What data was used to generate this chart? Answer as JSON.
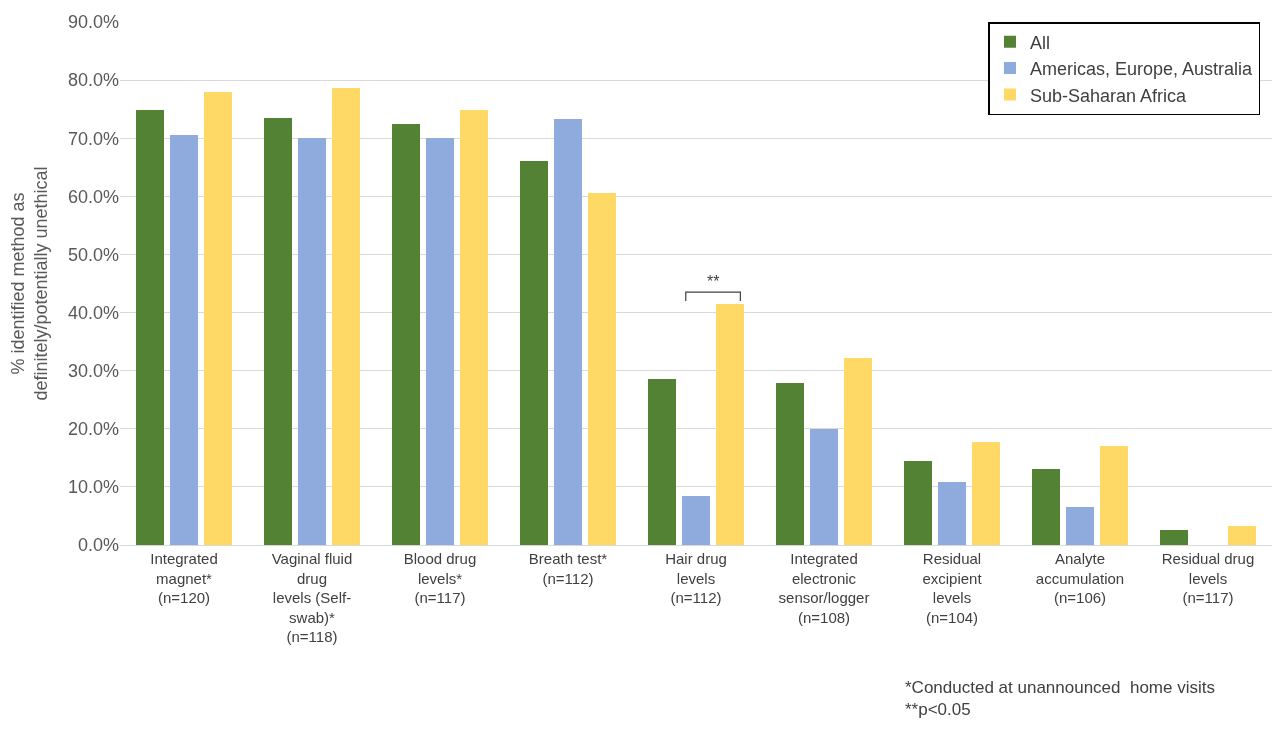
{
  "chart_data": {
    "type": "bar",
    "ylabel": "% identified method as\ndefinitely/potentially unethical",
    "categories": [
      "Integrated\nmagnet*\n(n=120)",
      "Vaginal fluid\ndrug\nlevels (Self-\nswab)*\n(n=118)",
      "Blood drug\nlevels*\n(n=117)",
      "Breath test*\n(n=112)",
      "Hair drug\nlevels\n(n=112)",
      "Integrated\nelectronic\nsensor/logger\n(n=108)",
      "Residual\nexcipient\nlevels\n(n=104)",
      "Analyte\naccumulation\n(n=106)",
      "Residual drug\nlevels\n(n=117)"
    ],
    "series": [
      {
        "name": "All",
        "color": "#548235",
        "values": [
          74.9,
          73.5,
          72.5,
          66.0,
          28.5,
          27.8,
          14.4,
          13.1,
          2.5
        ]
      },
      {
        "name": "Americas, Europe, Australia",
        "color": "#8faadc",
        "values": [
          70.5,
          70.0,
          70.0,
          73.3,
          8.5,
          20.0,
          10.9,
          6.5,
          0
        ]
      },
      {
        "name": "Sub-Saharan Africa",
        "color": "#ffd966",
        "values": [
          77.9,
          78.6,
          74.9,
          60.6,
          41.4,
          32.1,
          17.7,
          17.0,
          3.2
        ]
      }
    ],
    "ylim": [
      0,
      90
    ],
    "yticks": [
      {
        "value": 0,
        "label": "0.0%"
      },
      {
        "value": 10,
        "label": "10.0%"
      },
      {
        "value": 20,
        "label": "20.0%"
      },
      {
        "value": 30,
        "label": "30.0%"
      },
      {
        "value": 40,
        "label": "40.0%"
      },
      {
        "value": 50,
        "label": "50.0%"
      },
      {
        "value": 60,
        "label": "60.0%"
      },
      {
        "value": 70,
        "label": "70.0%"
      },
      {
        "value": 80,
        "label": "80.0%"
      },
      {
        "value": 90,
        "label": "90.0%"
      }
    ],
    "grid": "y",
    "legend": "top right",
    "annotations": [
      "**",
      "*Conducted at unannounced  home visits\n**p<0.05"
    ]
  }
}
